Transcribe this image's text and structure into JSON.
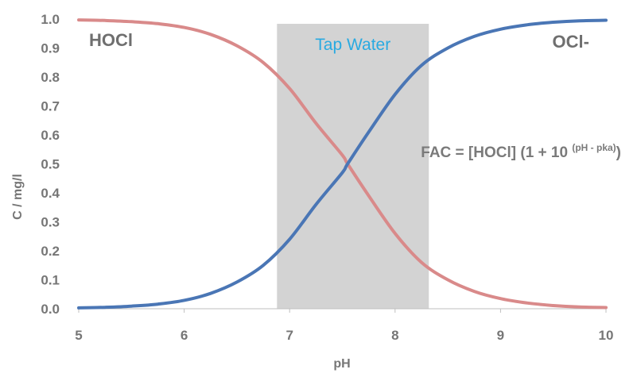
{
  "chart_data": {
    "type": "line",
    "title": "",
    "xlabel": "pH",
    "ylabel": "C / mg/l",
    "xlim": [
      5,
      10
    ],
    "ylim": [
      0,
      1.0
    ],
    "x_ticks": [
      "5",
      "6",
      "7",
      "8",
      "9",
      "10"
    ],
    "y_ticks": [
      "0.0",
      "0.1",
      "0.2",
      "0.3",
      "0.4",
      "0.5",
      "0.6",
      "0.7",
      "0.8",
      "0.9",
      "1.0"
    ],
    "grid": false,
    "x": [
      5.0,
      5.25,
      5.5,
      5.75,
      6.0,
      6.25,
      6.5,
      6.75,
      7.0,
      7.25,
      7.5,
      7.55,
      7.75,
      8.0,
      8.25,
      8.5,
      8.75,
      9.0,
      9.25,
      9.5,
      9.75,
      10.0
    ],
    "series": [
      {
        "name": "HOCl",
        "color": "#d98a8a",
        "values": [
          0.997,
          0.995,
          0.991,
          0.984,
          0.971,
          0.947,
          0.908,
          0.85,
          0.76,
          0.64,
          0.53,
          0.5,
          0.39,
          0.26,
          0.16,
          0.1,
          0.06,
          0.035,
          0.02,
          0.011,
          0.006,
          0.004
        ]
      },
      {
        "name": "OCl-",
        "color": "#4a76b5",
        "values": [
          0.003,
          0.005,
          0.009,
          0.016,
          0.029,
          0.053,
          0.092,
          0.15,
          0.24,
          0.36,
          0.47,
          0.5,
          0.61,
          0.74,
          0.84,
          0.9,
          0.94,
          0.965,
          0.98,
          0.989,
          0.994,
          0.996
        ]
      }
    ],
    "shaded_region": {
      "label": "Tap Water",
      "x_range": [
        6.88,
        8.32
      ],
      "color": "#d3d3d3",
      "label_color": "#29aae1"
    },
    "annotations": {
      "hocl_label": "HOCl",
      "ocl_label": "OCl-",
      "formula_main": "FAC = [HOCl] (1 + 10 ",
      "formula_sup": "(pH - pka)",
      "formula_close": ")"
    }
  }
}
